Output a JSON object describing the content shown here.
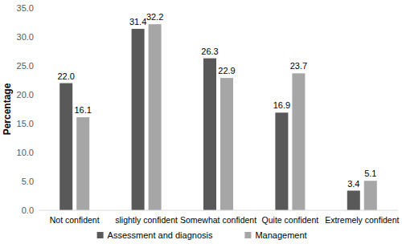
{
  "chart_data": {
    "type": "bar",
    "y_label": "Percentage",
    "categories": [
      "Not confident",
      "slightly confident",
      "Somewhat confident",
      "Quite confident",
      "Extremely confident"
    ],
    "series": [
      {
        "name": "Assessment and diagnosis",
        "color": "#595959",
        "values": [
          22.0,
          31.4,
          26.3,
          16.9,
          3.4
        ],
        "value_labels": [
          "22.0",
          "31.4",
          "26.3",
          "16.9",
          "3.4"
        ]
      },
      {
        "name": "Management",
        "color": "#a6a6a6",
        "values": [
          16.1,
          32.2,
          22.9,
          23.7,
          5.1
        ],
        "value_labels": [
          "16.1",
          "32.2",
          "22.9",
          "23.7",
          "5.1"
        ]
      }
    ],
    "ylim": [
      0,
      35
    ],
    "yticks": [
      {
        "value": 0,
        "label": "0.0"
      },
      {
        "value": 5,
        "label": "5.0"
      },
      {
        "value": 10,
        "label": "10.0"
      },
      {
        "value": 15,
        "label": "15.0"
      },
      {
        "value": 20,
        "label": "20.0"
      },
      {
        "value": 25,
        "label": "25.0"
      },
      {
        "value": 30,
        "label": "30.0"
      },
      {
        "value": 35,
        "label": "35.0"
      }
    ],
    "grid": false,
    "data_labels": true,
    "legend": "bottom"
  }
}
